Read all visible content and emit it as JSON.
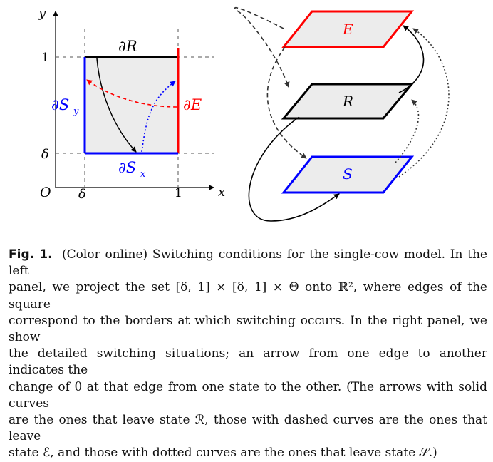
{
  "left_panel": {
    "axis_y": "y",
    "axis_x": "x",
    "origin": "O",
    "tick_x_delta": "δ",
    "tick_x_one": "1",
    "tick_y_one": "1",
    "tick_y_delta": "δ",
    "edge_top": "∂R",
    "edge_right": "∂E",
    "edge_left": "∂S",
    "edge_left_sub": "y",
    "edge_bottom": "∂S",
    "edge_bottom_sub": "x"
  },
  "right_panel": {
    "state_e": "E",
    "state_r": "R",
    "state_s": "S"
  },
  "colors": {
    "red": "#ff0000",
    "blue": "#0000ff",
    "black": "#000000",
    "fill": "#ececec"
  },
  "caption": {
    "label": "Fig. 1.",
    "line1": "(Color online) Switching conditions for the single-cow model. In the left",
    "line2": "panel, we project the set [δ, 1] × [δ, 1] × Θ onto ℝ², where edges of the square",
    "line3": "correspond to the borders at which switching occurs. In the right panel, we show",
    "line4": "the detailed switching situations; an arrow from one edge to another indicates the",
    "line5": "change of θ at that edge from one state to the other. (The arrows with solid curves",
    "line6": "are the ones that leave state ℛ, those with dashed curves are the ones that leave",
    "line7": "state ℰ, and those with dotted curves are the ones that leave state 𝒮.)"
  }
}
